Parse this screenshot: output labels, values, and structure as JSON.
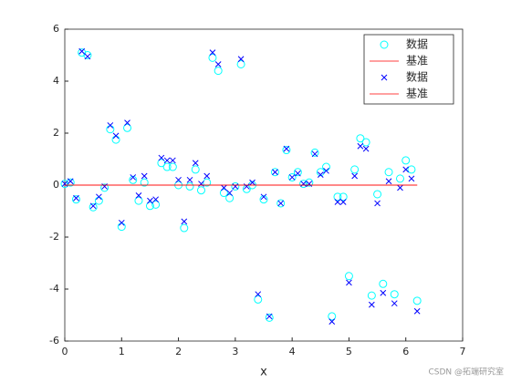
{
  "chart_data": {
    "type": "scatter",
    "xlabel": "x",
    "x": [
      0,
      0.1,
      0.2,
      0.3,
      0.4,
      0.5,
      0.6,
      0.7,
      0.8,
      0.9,
      1.0,
      1.1,
      1.2,
      1.3,
      1.4,
      1.5,
      1.6,
      1.7,
      1.8,
      1.9,
      2.0,
      2.1,
      2.2,
      2.3,
      2.4,
      2.5,
      2.6,
      2.7,
      2.8,
      2.9,
      3.0,
      3.1,
      3.2,
      3.3,
      3.4,
      3.5,
      3.6,
      3.7,
      3.8,
      3.9,
      4.0,
      4.1,
      4.2,
      4.3,
      4.4,
      4.5,
      4.6,
      4.7,
      4.8,
      4.9,
      5.0,
      5.1,
      5.2,
      5.3,
      5.4,
      5.5,
      5.6,
      5.7,
      5.8,
      5.9,
      6.0,
      6.1,
      6.2
    ],
    "series": [
      {
        "name": "数据",
        "color": "#00ffff",
        "marker": "circle",
        "values": [
          0.05,
          0.1,
          -0.55,
          5.1,
          5.0,
          -0.85,
          -0.6,
          -0.1,
          2.15,
          1.75,
          -1.6,
          2.2,
          0.2,
          -0.6,
          0.1,
          -0.8,
          -0.75,
          0.85,
          0.7,
          0.7,
          0,
          -1.65,
          -0.05,
          0.6,
          -0.2,
          0.1,
          4.9,
          4.4,
          -0.3,
          -0.5,
          -0.05,
          4.65,
          -0.15,
          0.0,
          -4.4,
          -0.55,
          -5.1,
          0.5,
          -0.7,
          1.35,
          0.3,
          0.5,
          0.05,
          0.1,
          1.25,
          0.5,
          0.7,
          -5.05,
          -0.45,
          -0.45,
          -3.5,
          0.6,
          1.8,
          1.65,
          -4.25,
          -0.35,
          -3.8,
          0.5,
          -4.2,
          0.25,
          0.95,
          0.6,
          -4.45
        ]
      },
      {
        "name": "基准",
        "color": "#ff0000",
        "marker": "none",
        "x": [
          0,
          6.2
        ],
        "values": [
          0,
          0
        ]
      },
      {
        "name": "数据",
        "color": "#0000ff",
        "marker": "cross",
        "values": [
          0.05,
          0.15,
          -0.5,
          5.15,
          4.95,
          -0.8,
          -0.45,
          -0.05,
          2.3,
          1.9,
          -1.45,
          2.4,
          0.3,
          -0.4,
          0.35,
          -0.6,
          -0.55,
          1.05,
          0.95,
          0.95,
          0.2,
          -1.4,
          0.2,
          0.85,
          0.05,
          0.35,
          5.1,
          4.65,
          -0.1,
          -0.3,
          -0.05,
          4.85,
          -0.05,
          0.1,
          -4.2,
          -0.45,
          -5.05,
          0.5,
          -0.7,
          1.4,
          0.3,
          0.45,
          0.05,
          0.05,
          1.2,
          0.4,
          0.55,
          -5.25,
          -0.65,
          -0.65,
          -3.75,
          0.35,
          1.5,
          1.4,
          -4.6,
          -0.7,
          -4.15,
          0.15,
          -4.55,
          -0.1,
          0.6,
          0.25,
          -4.85
        ]
      },
      {
        "name": "基准",
        "color": "#ff0000",
        "marker": "none",
        "x": [
          0,
          6.2
        ],
        "values": [
          0,
          0
        ]
      }
    ],
    "xlim": [
      0,
      7
    ],
    "xticks": [
      0,
      1,
      2,
      3,
      4,
      5,
      6,
      7
    ],
    "ylim": [
      -6,
      6
    ],
    "yticks": [
      -6,
      -4,
      -2,
      0,
      2,
      4,
      6
    ],
    "legend": "top-right",
    "watermark": "CSDN @拓端研究室"
  }
}
